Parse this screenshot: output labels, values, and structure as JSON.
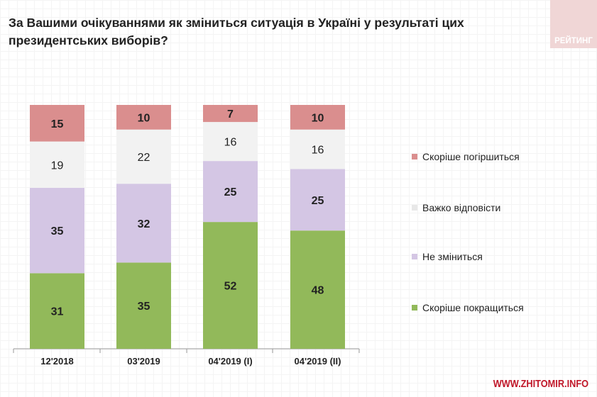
{
  "title": "За Вашими очікуваннями як зміниться ситуація в Україні у результаті цих президентських виборів?",
  "logo": "РЕЙТИНГ",
  "site": "WWW.ZHITOMIR.INFO",
  "chart_data": {
    "type": "bar",
    "stacked": true,
    "categories": [
      "12'2018",
      "03'2019",
      "04'2019 (I)",
      "04'2019 (II)"
    ],
    "series": [
      {
        "name": "Скоріше покращиться",
        "color": "#92b95a",
        "values": [
          31,
          35,
          52,
          48
        ]
      },
      {
        "name": "Не зміниться",
        "color": "#d4c6e4",
        "values": [
          35,
          32,
          25,
          25
        ]
      },
      {
        "name": "Важко відповісти",
        "color": "#f2f2f2",
        "values": [
          19,
          22,
          16,
          16
        ]
      },
      {
        "name": "Скоріше погіршиться",
        "color": "#da8e8e",
        "values": [
          15,
          10,
          7,
          10
        ]
      }
    ],
    "legend_position": "right",
    "ylim": [
      0,
      100
    ]
  }
}
